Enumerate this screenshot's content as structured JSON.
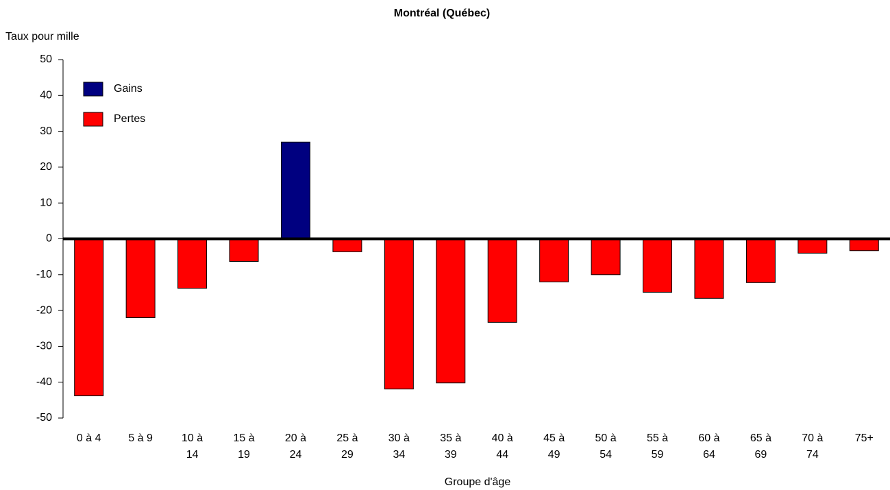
{
  "chart_data": {
    "type": "bar",
    "title": "Montréal (Québec)",
    "y_label": "Taux pour mille",
    "x_label": "Groupe d'âge",
    "categories": [
      "0 à 4",
      "5 à 9",
      "10 à 14",
      "15 à 19",
      "20 à 24",
      "25 à 29",
      "30 à 34",
      "35 à 39",
      "40 à 44",
      "45 à 49",
      "50 à 54",
      "55 à 59",
      "60 à 64",
      "65 à 69",
      "70 à 74",
      "75+"
    ],
    "series": [
      {
        "name": "Gains",
        "color": "#000080",
        "values": [
          null,
          null,
          null,
          null,
          27,
          null,
          null,
          null,
          null,
          null,
          null,
          null,
          null,
          null,
          null,
          null
        ]
      },
      {
        "name": "Pertes",
        "color": "#ff0000",
        "values": [
          -43.8,
          -22,
          -13.8,
          -6.3,
          null,
          -3.6,
          -41.9,
          -40.2,
          -23.3,
          -12,
          -10,
          -14.9,
          -16.6,
          -12.2,
          -4,
          -3.3
        ]
      }
    ],
    "ylim": [
      -50,
      50
    ],
    "yticks": [
      -50,
      -40,
      -30,
      -20,
      -10,
      0,
      10,
      20,
      30,
      40,
      50
    ],
    "legend": "upper left"
  }
}
